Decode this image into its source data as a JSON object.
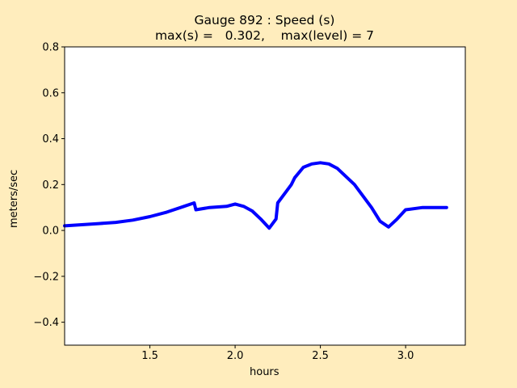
{
  "title": {
    "line1": "Gauge 892 : Speed (s)",
    "line2": "max(s) =   0.302,    max(level) = 7"
  },
  "colors": {
    "background": "#ffedbd",
    "plot_area": "#ffffff",
    "series": "#0000ff"
  },
  "chart_data": {
    "type": "line",
    "xlabel": "hours",
    "ylabel": "meters/sec",
    "xlim": [
      1.0,
      3.35
    ],
    "ylim": [
      -0.5,
      0.8
    ],
    "xticks": [
      1.5,
      2.0,
      2.5,
      3.0
    ],
    "xtick_labels": [
      "1.5",
      "2.0",
      "2.5",
      "3.0"
    ],
    "yticks": [
      -0.4,
      -0.2,
      0.0,
      0.2,
      0.4,
      0.6,
      0.8
    ],
    "ytick_labels": [
      "−0.4",
      "−0.2",
      "0.0",
      "0.2",
      "0.4",
      "0.6",
      "0.8"
    ],
    "grid": false,
    "legend": "none",
    "series": [
      {
        "color": "#0000ff",
        "x": [
          1.0,
          1.1,
          1.2,
          1.3,
          1.4,
          1.5,
          1.6,
          1.7,
          1.76,
          1.77,
          1.85,
          1.95,
          2.0,
          2.05,
          2.1,
          2.15,
          2.2,
          2.24,
          2.25,
          2.3,
          2.33,
          2.35,
          2.4,
          2.45,
          2.5,
          2.55,
          2.6,
          2.7,
          2.8,
          2.85,
          2.9,
          2.95,
          3.0,
          3.1,
          3.2,
          3.24
        ],
        "y": [
          0.02,
          0.025,
          0.03,
          0.035,
          0.045,
          0.06,
          0.08,
          0.105,
          0.12,
          0.09,
          0.1,
          0.105,
          0.115,
          0.105,
          0.085,
          0.05,
          0.01,
          0.05,
          0.12,
          0.17,
          0.2,
          0.23,
          0.275,
          0.29,
          0.295,
          0.29,
          0.27,
          0.2,
          0.1,
          0.04,
          0.015,
          0.05,
          0.09,
          0.1,
          0.1,
          0.1
        ]
      }
    ]
  }
}
